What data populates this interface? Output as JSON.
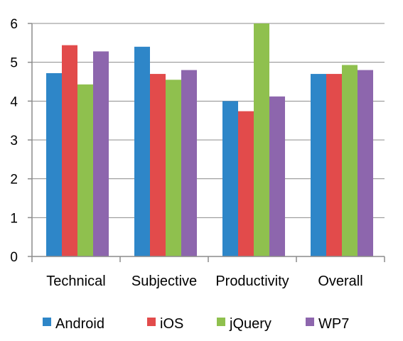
{
  "chart_data": {
    "type": "bar",
    "categories": [
      "Technical",
      "Subjective",
      "Productivity",
      "Overall"
    ],
    "series": [
      {
        "name": "Android",
        "color": "#2e86c8",
        "values": [
          4.72,
          5.4,
          4.0,
          4.7
        ]
      },
      {
        "name": "iOS",
        "color": "#e24b4b",
        "values": [
          5.44,
          4.7,
          3.74,
          4.7
        ]
      },
      {
        "name": "jQuery",
        "color": "#8fc04e",
        "values": [
          4.43,
          4.55,
          6.0,
          4.93
        ]
      },
      {
        "name": "WP7",
        "color": "#8d66ad",
        "values": [
          5.28,
          4.8,
          4.12,
          4.8
        ]
      }
    ],
    "yticks": [
      "0",
      "1",
      "2",
      "3",
      "4",
      "5",
      "6"
    ],
    "ylim": [
      0,
      6
    ],
    "grid": true,
    "legend_position": "bottom"
  }
}
